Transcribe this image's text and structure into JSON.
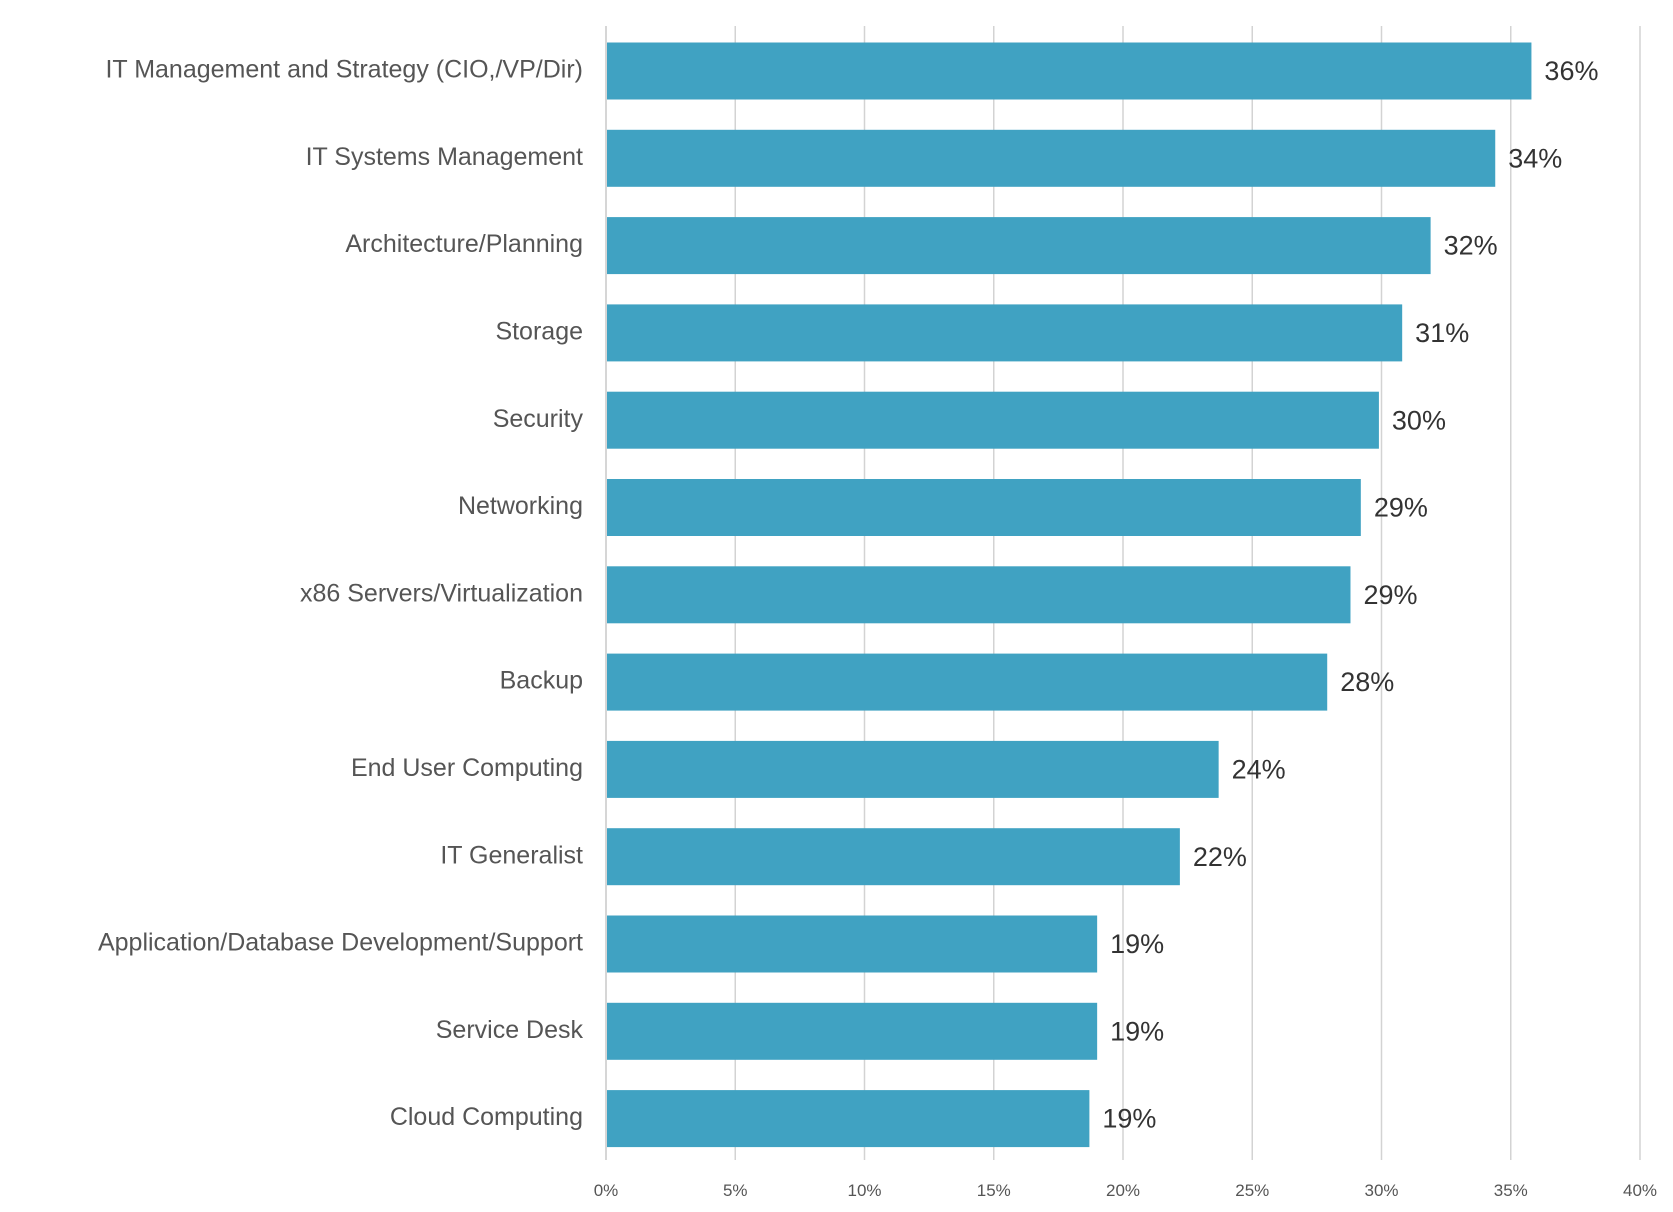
{
  "chart_data": {
    "type": "bar",
    "orientation": "horizontal",
    "categories": [
      "IT Management and Strategy (CIO,/VP/Dir)",
      "IT Systems Management",
      "Architecture/Planning",
      "Storage",
      "Security",
      "Networking",
      "x86 Servers/Virtualization",
      "Backup",
      "End User Computing",
      "IT Generalist",
      "Application/Database Development/Support",
      "Service Desk",
      "Cloud Computing"
    ],
    "values": [
      35.8,
      34.4,
      31.9,
      30.8,
      29.9,
      29.2,
      28.8,
      27.9,
      23.7,
      22.2,
      19.0,
      19.0,
      18.7
    ],
    "value_labels": [
      "36%",
      "34%",
      "32%",
      "31%",
      "30%",
      "29%",
      "29%",
      "28%",
      "24%",
      "22%",
      "19%",
      "19%",
      "19%"
    ],
    "xlim": [
      0,
      40
    ],
    "x_ticks": [
      0,
      5,
      10,
      15,
      20,
      25,
      30,
      35,
      40
    ],
    "x_tick_labels": [
      "0%",
      "5%",
      "10%",
      "15%",
      "20%",
      "25%",
      "30%",
      "35%",
      "40%"
    ],
    "title": "",
    "xlabel": "",
    "ylabel": "",
    "grid": "vertical",
    "legend": "none",
    "bar_color": "#40a2c2"
  }
}
